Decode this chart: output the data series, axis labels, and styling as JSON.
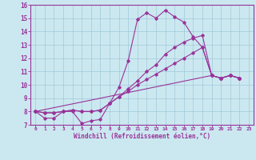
{
  "background_color": "#cbe8f0",
  "grid_color": "#a0c8d8",
  "line_color": "#993399",
  "xlabel": "Windchill (Refroidissement éolien,°C)",
  "xlim": [
    -0.5,
    23.5
  ],
  "ylim": [
    7,
    16
  ],
  "xticks": [
    0,
    1,
    2,
    3,
    4,
    5,
    6,
    7,
    8,
    9,
    10,
    11,
    12,
    13,
    14,
    15,
    16,
    17,
    18,
    19,
    20,
    21,
    22,
    23
  ],
  "yticks": [
    7,
    8,
    9,
    10,
    11,
    12,
    13,
    14,
    15,
    16
  ],
  "series": [
    {
      "x": [
        0,
        1,
        2,
        3,
        4,
        5,
        6,
        7,
        8,
        9,
        10,
        11,
        12,
        13,
        14,
        15,
        16,
        17,
        18,
        19,
        20,
        21,
        22
      ],
      "y": [
        8.0,
        7.5,
        7.5,
        8.0,
        8.0,
        7.1,
        7.3,
        7.4,
        8.6,
        9.8,
        11.8,
        14.9,
        15.4,
        15.0,
        15.6,
        15.1,
        14.7,
        13.6,
        12.8,
        10.7,
        10.5,
        10.7,
        10.5
      ]
    },
    {
      "x": [
        0,
        1,
        2,
        3,
        4,
        5,
        6,
        7,
        8,
        9,
        10,
        11,
        12,
        13,
        14,
        15,
        16,
        17,
        18,
        19,
        20,
        21,
        22
      ],
      "y": [
        8.0,
        7.9,
        7.9,
        8.0,
        8.1,
        8.0,
        8.0,
        8.1,
        8.6,
        9.1,
        9.5,
        10.0,
        10.4,
        10.8,
        11.2,
        11.6,
        12.0,
        12.4,
        12.8,
        10.7,
        10.5,
        10.7,
        10.5
      ]
    },
    {
      "x": [
        0,
        19,
        20,
        21,
        22
      ],
      "y": [
        8.0,
        10.7,
        10.5,
        10.7,
        10.5
      ]
    },
    {
      "x": [
        0,
        1,
        2,
        3,
        4,
        5,
        6,
        7,
        8,
        9,
        10,
        11,
        12,
        13,
        14,
        15,
        16,
        17,
        18,
        19,
        20,
        21,
        22
      ],
      "y": [
        8.0,
        7.9,
        7.9,
        8.0,
        8.1,
        8.0,
        8.0,
        8.1,
        8.6,
        9.1,
        9.7,
        10.3,
        11.0,
        11.5,
        12.3,
        12.8,
        13.2,
        13.5,
        13.7,
        10.7,
        10.5,
        10.7,
        10.5
      ]
    }
  ]
}
